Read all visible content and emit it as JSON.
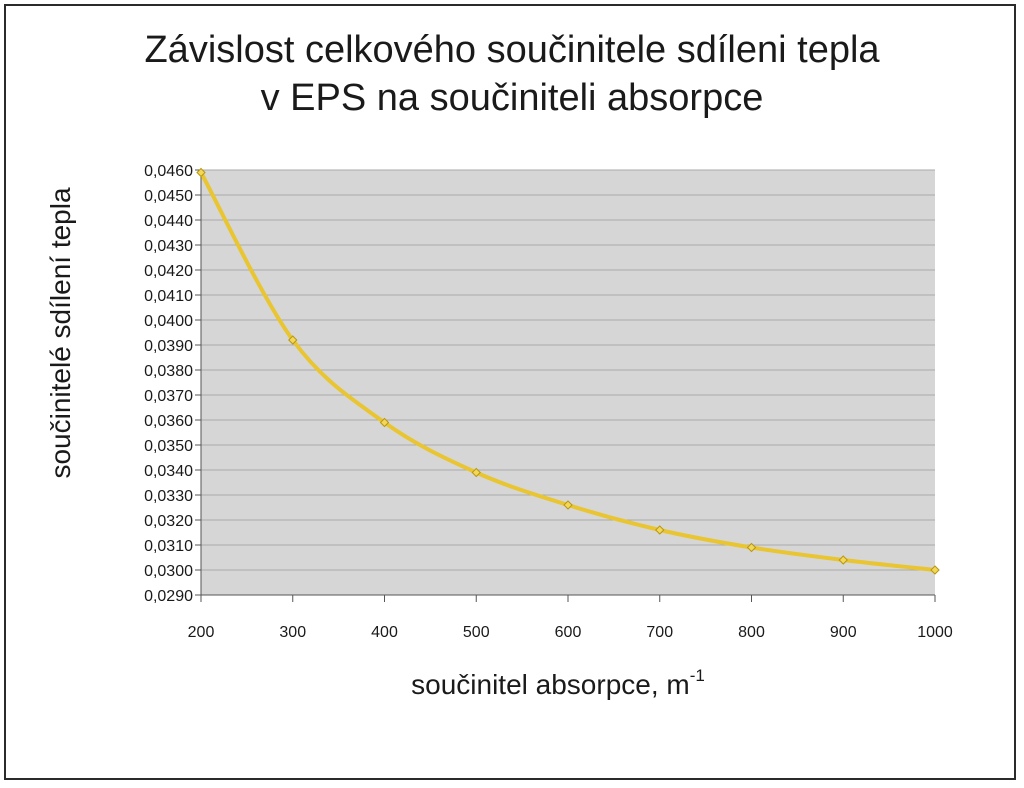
{
  "chart_data": {
    "type": "line",
    "title_line1": "Závislost celkového součinitele sdíleni tepla",
    "title_line2": "v EPS na součiniteli absorpce",
    "xlabel": "součinitel absorpce, m",
    "xlabel_sup": "-1",
    "ylabel": "součinitelé sdílení tepla",
    "x": [
      200,
      300,
      400,
      500,
      600,
      700,
      800,
      900,
      1000
    ],
    "series": [
      {
        "values": [
          0.0459,
          0.0392,
          0.0359,
          0.0339,
          0.0326,
          0.0316,
          0.0309,
          0.0304,
          0.03
        ],
        "color": "#e8c531"
      }
    ],
    "xlim": [
      200,
      1000
    ],
    "ylim": [
      0.029,
      0.046
    ],
    "x_ticks": [
      "200",
      "300",
      "400",
      "500",
      "600",
      "700",
      "800",
      "900",
      "1000"
    ],
    "y_ticks": [
      "0,0290",
      "0,0300",
      "0,0310",
      "0,0320",
      "0,0330",
      "0,0340",
      "0,0350",
      "0,0360",
      "0,0370",
      "0,0380",
      "0,0390",
      "0,0400",
      "0,0410",
      "0,0420",
      "0,0430",
      "0,0440",
      "0,0450",
      "0,0460"
    ],
    "grid": true,
    "plot_background": "#d6d6d6",
    "gridline_color": "#a9a9a9",
    "legend": "none"
  }
}
